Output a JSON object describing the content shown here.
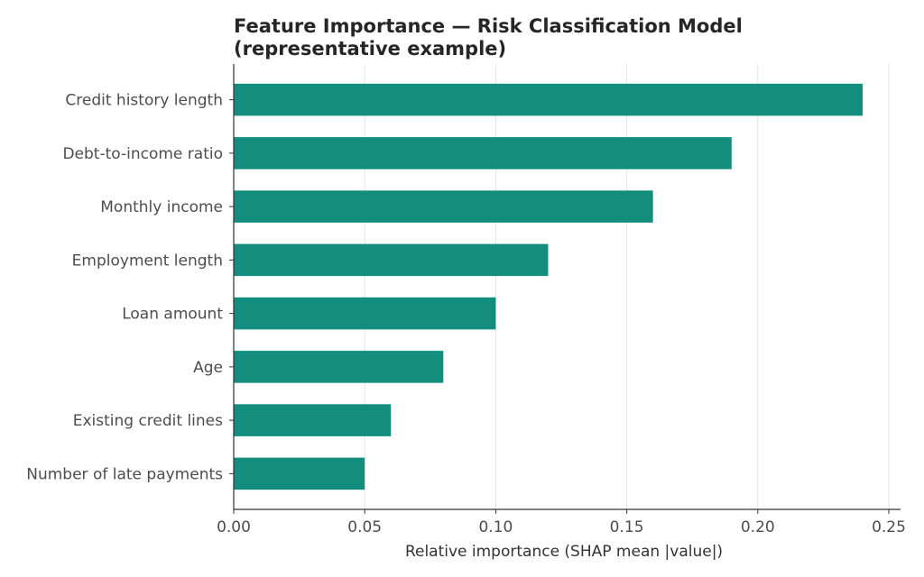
{
  "chart_data": {
    "type": "bar",
    "orientation": "horizontal",
    "title_lines": [
      "Feature Importance — Risk Classification Model",
      "(representative example)"
    ],
    "xlabel": "Relative importance (SHAP mean |value|)",
    "ylabel": "",
    "categories": [
      "Credit history length",
      "Debt-to-income ratio",
      "Monthly income",
      "Employment length",
      "Loan amount",
      "Age",
      "Existing credit lines",
      "Number of late payments"
    ],
    "values": [
      0.24,
      0.19,
      0.16,
      0.12,
      0.1,
      0.08,
      0.06,
      0.05
    ],
    "xlim": [
      0,
      0.25
    ],
    "xticks": [
      0.0,
      0.05,
      0.1,
      0.15,
      0.2,
      0.25
    ],
    "xtick_labels": [
      "0.00",
      "0.05",
      "0.10",
      "0.15",
      "0.20",
      "0.25"
    ],
    "grid": "vertical",
    "bar_color": "#138d7e"
  }
}
